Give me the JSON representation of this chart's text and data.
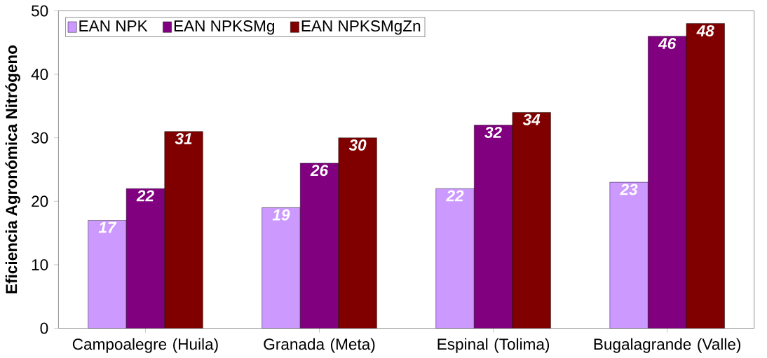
{
  "chart_data": {
    "type": "bar",
    "ylabel": "Eficiencia Agronómica Nitrógeno",
    "categories": [
      "Campoalegre (Huila)",
      "Granada (Meta)",
      "Espinal (Tolima)",
      "Bugalagrande (Valle)"
    ],
    "series": [
      {
        "name": "EAN NPK",
        "color": "#cc99ff",
        "values": [
          17,
          19,
          22,
          23
        ]
      },
      {
        "name": "EAN NPKSMg",
        "color": "#800080",
        "values": [
          22,
          26,
          32,
          46
        ]
      },
      {
        "name": "EAN NPKSMgZn",
        "color": "#800000",
        "values": [
          31,
          30,
          34,
          48
        ]
      }
    ],
    "ylim": [
      0,
      50
    ],
    "yticks": [
      0,
      10,
      20,
      30,
      40,
      50
    ],
    "data_labels": true,
    "legend": "top left",
    "grid": false
  }
}
